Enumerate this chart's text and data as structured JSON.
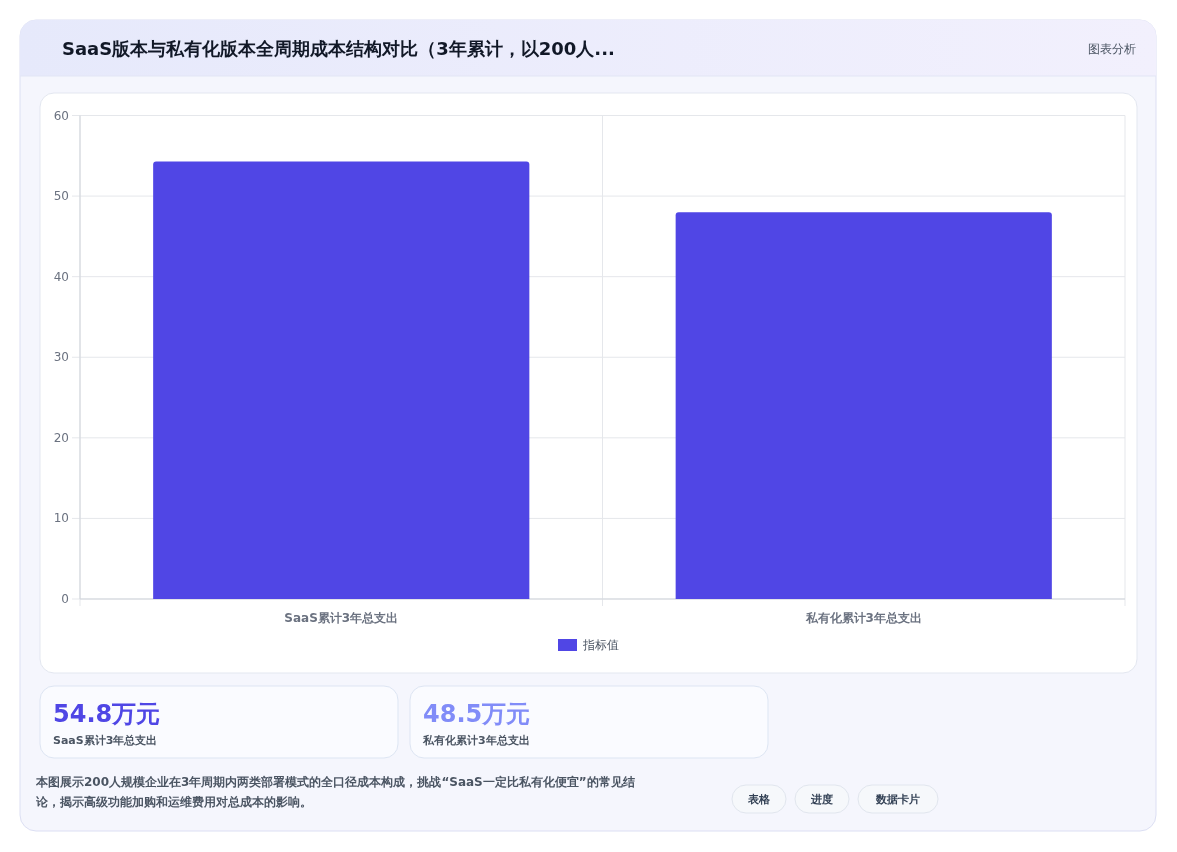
{
  "chart_data": [
    {
      "type": "bar",
      "title": "SaaS版本与私有化版本全周期成本结构对比（3年累计，以200人...",
      "categories": [
        "SaaS累计3年总支出",
        "私有化累计3年总支出"
      ],
      "series": [
        {
          "name": "指标值",
          "color": "#5046e5",
          "values": [
            54.3,
            48.0
          ]
        }
      ],
      "ylim": [
        0,
        60
      ],
      "yticks": [
        0,
        10,
        20,
        30,
        40,
        50,
        60
      ],
      "grid": true,
      "legend": "bottom",
      "annotations": [
        "图表分析",
        "本图展示200人规模企业在3年周期内两类部署模式的全口径成本构成，挑战“SaaS一定比私有化便宜”的常见结论，揭示高级功能加购和运维费用对总成本的影响。",
        "表格",
        "进度",
        "数据卡片"
      ]
    },
    {
      "type": "other",
      "annotations": [
        "54.8万元",
        "SaaS累计3年总支出",
        "48.5万元",
        "私有化累计3年总支出"
      ]
    }
  ]
}
